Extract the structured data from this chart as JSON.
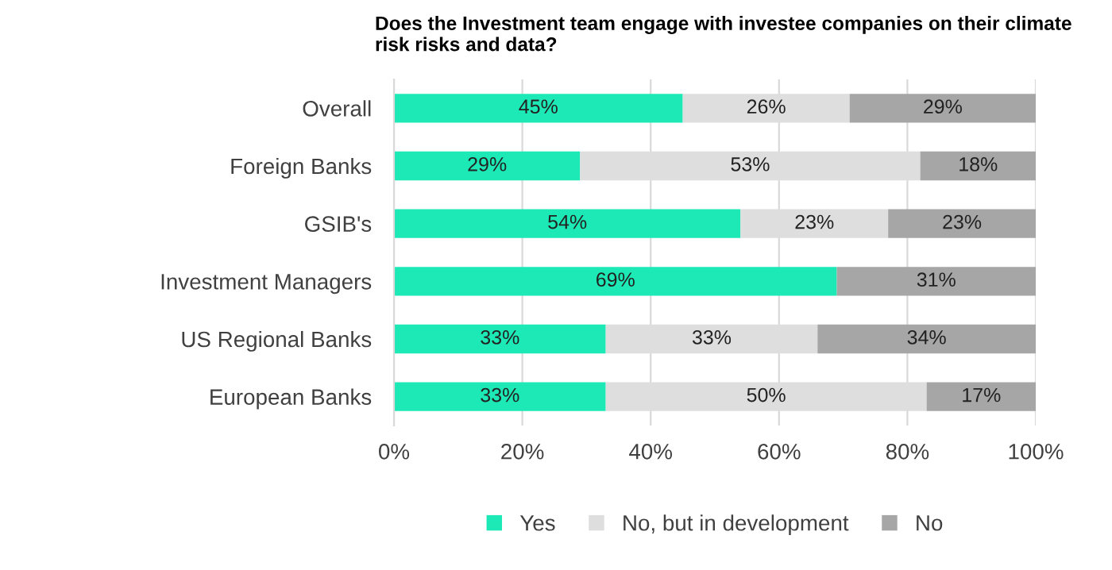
{
  "chart_data": {
    "type": "bar",
    "orientation": "horizontal",
    "stacked": true,
    "title": "Does the Investment team engage with investee companies on their climate\nrisk risks and data?",
    "categories": [
      "Overall",
      "Foreign Banks",
      "GSIB's",
      "Investment Managers",
      "US Regional Banks",
      "European Banks"
    ],
    "series": [
      {
        "name": "Yes",
        "color": "#1de9b6",
        "values": [
          45,
          29,
          54,
          69,
          33,
          33
        ],
        "value_labels": [
          "45%",
          "29%",
          "54%",
          "69%",
          "33%",
          "33%"
        ]
      },
      {
        "name": "No, but in development",
        "color": "#dedede",
        "values": [
          26,
          53,
          23,
          0,
          33,
          50
        ],
        "value_labels": [
          "26%",
          "53%",
          "23%",
          null,
          "33%",
          "50%"
        ]
      },
      {
        "name": "No",
        "color": "#a6a6a6",
        "values": [
          29,
          18,
          23,
          31,
          34,
          17
        ],
        "value_labels": [
          "29%",
          "18%",
          "23%",
          "31%",
          "34%",
          "17%"
        ]
      }
    ],
    "xlim": [
      0,
      100
    ],
    "xticks": [
      {
        "value": 0,
        "label": "0%"
      },
      {
        "value": 20,
        "label": "20%"
      },
      {
        "value": 40,
        "label": "40%"
      },
      {
        "value": 60,
        "label": "60%"
      },
      {
        "value": 80,
        "label": "80%"
      },
      {
        "value": 100,
        "label": "100%"
      }
    ],
    "grid": "x",
    "legend": "bottom"
  }
}
